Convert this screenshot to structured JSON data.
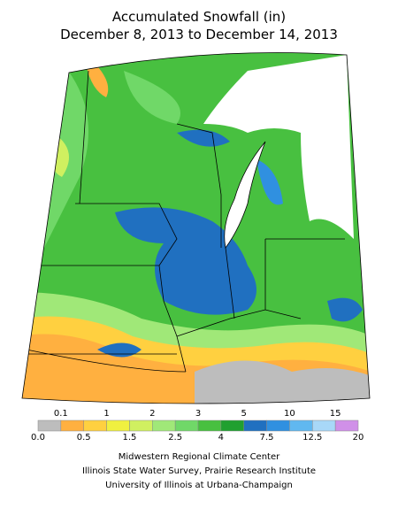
{
  "title": [
    "Accumulated Snowfall (in)",
    "December 8, 2013 to December 14, 2013"
  ],
  "legend": {
    "breaks": [
      {
        "value": 0,
        "label": "0.0"
      },
      0.1,
      0.5,
      1,
      1.5,
      2,
      2.5,
      3,
      4,
      5,
      7.5,
      10,
      12.5,
      15,
      20
    ],
    "colors": [
      "#bdbdbd",
      "#ffb040",
      "#ffd040",
      "#f0f040",
      "#d0f060",
      "#a0e878",
      "#70d868",
      "#48c040",
      "#20a030",
      "#2070c0",
      "#3090e0",
      "#60b8f0",
      "#a8d8f8",
      "#d090e8"
    ]
  },
  "credits": [
    "Midwestern Regional Climate Center",
    "Illinois State Water Survey, Prairie Research Institute",
    "University of Illinois at Urbana-Champaign"
  ]
}
